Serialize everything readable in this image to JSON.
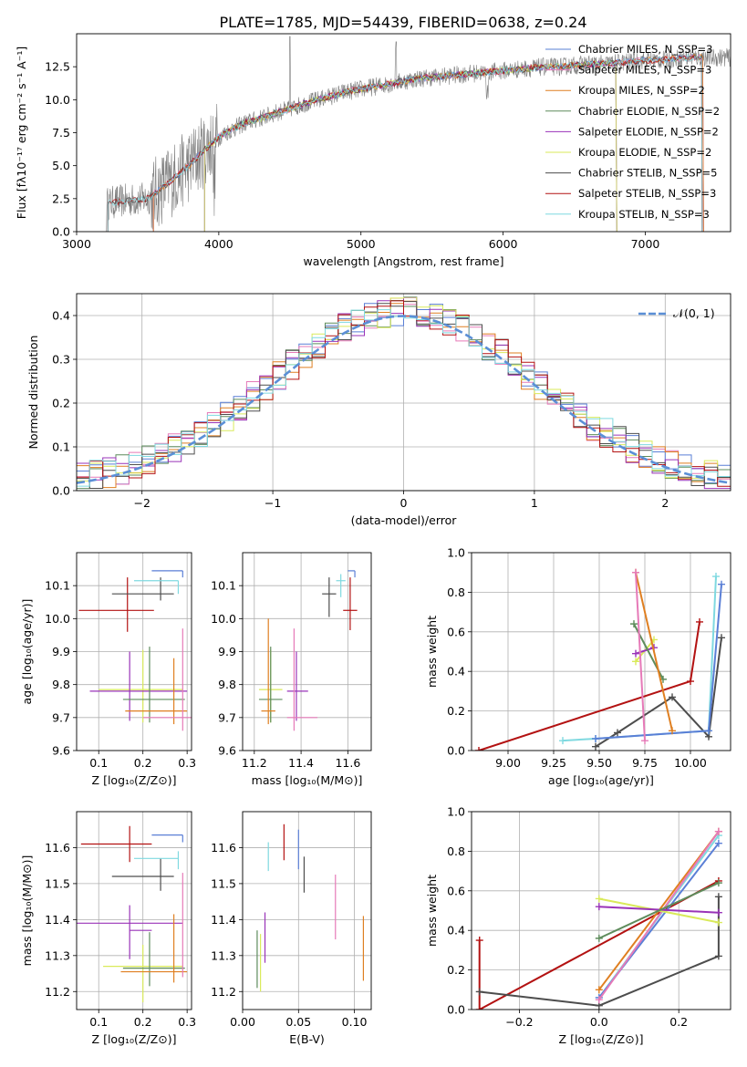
{
  "figure": {
    "title": "PLATE=1785, MJD=54439, FIBERID=0638, z=0.24",
    "colors": {
      "Chabrier MILES": "#5a7fd6",
      "Salpeter MILES": "#e67ab8",
      "Kroupa MILES": "#df7f21",
      "Chabrier ELODIE": "#5e8c5c",
      "Salpeter ELODIE": "#9933b8",
      "Kroupa ELODIE": "#d9ea5a",
      "Chabrier STELIB": "#4d4d4d",
      "Salpeter STELIB": "#b31212",
      "Kroupa STELIB": "#7fd9e0",
      "data": "#7f7f7f",
      "normal": "#5b8fd6"
    }
  },
  "chart_data": [
    {
      "id": "spectrum",
      "type": "line",
      "xlabel": "wavelength [Angstrom, rest frame]",
      "ylabel": "Flux [fλ10⁻¹⁷ erg cm⁻² s⁻¹ A⁻¹]",
      "xlim": [
        3000,
        7600
      ],
      "ylim": [
        0,
        15
      ],
      "xticks": [
        "3000",
        "4000",
        "5000",
        "6000",
        "7000"
      ],
      "yticks": [
        "0.0",
        "2.5",
        "5.0",
        "7.5",
        "10.0",
        "12.5"
      ],
      "legend_position": "right",
      "legend": [
        "Chabrier MILES, N_SSP=3",
        "Salpeter MILES, N_SSP=3",
        "Kroupa MILES, N_SSP=2",
        "Chabrier ELODIE, N_SSP=2",
        "Salpeter ELODIE, N_SSP=2",
        "Kroupa ELODIE, N_SSP=2",
        "Chabrier STELIB, N_SSP=5",
        "Salpeter STELIB, N_SSP=3",
        "Kroupa STELIB, N_SSP=3"
      ],
      "continuum": {
        "x": [
          3200,
          3300,
          3400,
          3500,
          3600,
          3700,
          3800,
          3900,
          4000,
          4100,
          4200,
          4300,
          4400,
          4500,
          4600,
          4700,
          4800,
          4900,
          5000,
          5100,
          5200,
          5300,
          5400,
          5500,
          5600,
          5700,
          5800,
          5900,
          6000,
          6100,
          6200,
          6300,
          6400,
          6500,
          6600,
          6700,
          6800,
          6900,
          7000,
          7100,
          7200,
          7300
        ],
        "y": [
          2.1,
          2.3,
          2.4,
          2.5,
          3.3,
          4.2,
          5.1,
          6.2,
          7.2,
          7.8,
          8.3,
          8.6,
          9.0,
          9.3,
          9.7,
          10.0,
          10.3,
          10.6,
          10.8,
          11.0,
          11.2,
          11.4,
          11.6,
          11.7,
          11.8,
          11.9,
          12.0,
          12.1,
          12.2,
          12.3,
          12.4,
          12.5,
          12.5,
          12.6,
          12.7,
          12.7,
          12.8,
          12.9,
          13.0,
          13.0,
          13.1,
          13.2
        ]
      }
    },
    {
      "id": "residuals",
      "type": "line",
      "xlabel": "(data-model)/error",
      "ylabel": "Normed distribution",
      "xlim": [
        -2.5,
        2.5
      ],
      "ylim": [
        0,
        0.45
      ],
      "xticks": [
        "−2",
        "−1",
        "0",
        "1",
        "2"
      ],
      "yticks": [
        "0.0",
        "0.1",
        "0.2",
        "0.3",
        "0.4"
      ],
      "legend": [
        "𝒩(0, 1)"
      ],
      "legend_position": "top-right",
      "curve": "normal(0,1)"
    },
    {
      "id": "age_vs_Z",
      "type": "scatter",
      "xlabel": "Z [log₁₀(Z/Z⊙)]",
      "ylabel": "age  [log₁₀(age/yr)]",
      "xlim": [
        0.05,
        0.31
      ],
      "ylim": [
        9.6,
        10.2
      ],
      "xticks": [
        "0.1",
        "0.2",
        "0.3"
      ],
      "yticks": [
        "9.6",
        "9.7",
        "9.8",
        "9.9",
        "10.0",
        "10.1"
      ],
      "points": [
        {
          "model": "Salpeter STELIB",
          "x": 0.165,
          "y": 10.025,
          "xerr": [
            0.11,
            0.06
          ],
          "yerr": [
            0.065,
            0.1
          ]
        },
        {
          "model": "Chabrier STELIB",
          "x": 0.24,
          "y": 10.075,
          "xerr": [
            0.11,
            0.03
          ],
          "yerr": [
            0.02,
            0.05
          ]
        },
        {
          "model": "Kroupa STELIB",
          "x": 0.28,
          "y": 10.115,
          "xerr": [
            0.1,
            0.0
          ],
          "yerr": [
            0.04,
            0.0
          ]
        },
        {
          "model": "Chabrier MILES",
          "x": 0.29,
          "y": 10.145,
          "xerr": [
            0.07,
            0.0
          ],
          "yerr": [
            0.02,
            0.0
          ]
        },
        {
          "model": "Kroupa ELODIE",
          "x": 0.2,
          "y": 9.785,
          "xerr": [
            0.1,
            0.09
          ],
          "yerr": [
            0.1,
            0.12
          ]
        },
        {
          "model": "Salpeter ELODIE",
          "x": 0.17,
          "y": 9.78,
          "xerr": [
            0.09,
            0.13
          ],
          "yerr": [
            0.09,
            0.12
          ]
        },
        {
          "model": "Chabrier ELODIE",
          "x": 0.215,
          "y": 9.755,
          "xerr": [
            0.06,
            0.08
          ],
          "yerr": [
            0.07,
            0.16
          ]
        },
        {
          "model": "Kroupa MILES",
          "x": 0.27,
          "y": 9.72,
          "xerr": [
            0.11,
            0.03
          ],
          "yerr": [
            0.04,
            0.16
          ]
        },
        {
          "model": "Salpeter MILES",
          "x": 0.29,
          "y": 9.7,
          "xerr": [
            0.09,
            0.02
          ],
          "yerr": [
            0.04,
            0.27
          ]
        }
      ]
    },
    {
      "id": "age_vs_mass",
      "type": "scatter",
      "xlabel": "mass [log₁₀(M/M⊙)]",
      "xlim": [
        11.15,
        11.7
      ],
      "ylim": [
        9.6,
        10.2
      ],
      "xticks": [
        "11.2",
        "11.4",
        "11.6"
      ],
      "yticks": [
        "9.6",
        "9.7",
        "9.8",
        "9.9",
        "10.0",
        "10.1"
      ],
      "points": [
        {
          "model": "Salpeter STELIB",
          "x": 11.61,
          "y": 10.025,
          "xerr": [
            0.03,
            0.03
          ],
          "yerr": [
            0.06,
            0.1
          ]
        },
        {
          "model": "Chabrier STELIB",
          "x": 11.52,
          "y": 10.075,
          "xerr": [
            0.03,
            0.03
          ],
          "yerr": [
            0.07,
            0.05
          ]
        },
        {
          "model": "Kroupa STELIB",
          "x": 11.57,
          "y": 10.115,
          "xerr": [
            0.02,
            0.02
          ],
          "yerr": [
            0.05,
            0.02
          ]
        },
        {
          "model": "Chabrier MILES",
          "x": 11.63,
          "y": 10.145,
          "xerr": [
            0.03,
            0.0
          ],
          "yerr": [
            0.02,
            0.0
          ]
        },
        {
          "model": "Kroupa ELODIE",
          "x": 11.27,
          "y": 9.785,
          "xerr": [
            0.05,
            0.05
          ],
          "yerr": [
            0.1,
            0.12
          ]
        },
        {
          "model": "Salpeter ELODIE",
          "x": 11.38,
          "y": 9.78,
          "xerr": [
            0.04,
            0.05
          ],
          "yerr": [
            0.09,
            0.12
          ]
        },
        {
          "model": "Chabrier ELODIE",
          "x": 11.27,
          "y": 9.755,
          "xerr": [
            0.05,
            0.05
          ],
          "yerr": [
            0.07,
            0.16
          ]
        },
        {
          "model": "Kroupa MILES",
          "x": 11.26,
          "y": 9.72,
          "xerr": [
            0.03,
            0.03
          ],
          "yerr": [
            0.04,
            0.28
          ]
        },
        {
          "model": "Salpeter MILES",
          "x": 11.37,
          "y": 9.7,
          "xerr": [
            0.03,
            0.1
          ],
          "yerr": [
            0.04,
            0.27
          ]
        }
      ]
    },
    {
      "id": "weight_vs_age",
      "type": "line",
      "xlabel": "age  [log₁₀(age/yr)]",
      "ylabel": "mass weight",
      "xlim": [
        8.8,
        10.22
      ],
      "ylim": [
        0,
        1.0
      ],
      "xticks": [
        "9.00",
        "9.25",
        "9.50",
        "9.75",
        "10.00"
      ],
      "yticks": [
        "0.0",
        "0.2",
        "0.4",
        "0.6",
        "0.8",
        "1.0"
      ],
      "series": [
        {
          "model": "Salpeter STELIB",
          "x": [
            8.84,
            10.0,
            10.05
          ],
          "y": [
            0.0,
            0.35,
            0.65
          ]
        },
        {
          "model": "Chabrier STELIB",
          "x": [
            9.48,
            9.6,
            9.9,
            10.1,
            10.17
          ],
          "y": [
            0.02,
            0.09,
            0.27,
            0.07,
            0.57
          ]
        },
        {
          "model": "Kroupa STELIB",
          "x": [
            9.3,
            9.48,
            10.1,
            10.14
          ],
          "y": [
            0.05,
            0.06,
            0.1,
            0.88
          ]
        },
        {
          "model": "Chabrier MILES",
          "x": [
            9.48,
            10.1,
            10.17
          ],
          "y": [
            0.06,
            0.1,
            0.84
          ]
        },
        {
          "model": "Kroupa ELODIE",
          "x": [
            9.7,
            9.8
          ],
          "y": [
            0.45,
            0.56
          ]
        },
        {
          "model": "Salpeter ELODIE",
          "x": [
            9.7,
            9.8
          ],
          "y": [
            0.49,
            0.52
          ]
        },
        {
          "model": "Chabrier ELODIE",
          "x": [
            9.69,
            9.85
          ],
          "y": [
            0.64,
            0.36
          ]
        },
        {
          "model": "Kroupa MILES",
          "x": [
            9.7,
            9.9
          ],
          "y": [
            0.9,
            0.1
          ]
        },
        {
          "model": "Salpeter MILES",
          "x": [
            9.7,
            9.75
          ],
          "y": [
            0.9,
            0.05
          ]
        }
      ]
    },
    {
      "id": "mass_vs_Z",
      "type": "scatter",
      "xlabel": "Z [log₁₀(Z/Z⊙)]",
      "ylabel": "mass [log₁₀(M/M⊙)]",
      "xlim": [
        0.05,
        0.31
      ],
      "ylim": [
        11.15,
        11.7
      ],
      "xticks": [
        "0.1",
        "0.2",
        "0.3"
      ],
      "yticks": [
        "11.2",
        "11.3",
        "11.4",
        "11.5",
        "11.6"
      ],
      "points": [
        {
          "model": "Salpeter STELIB",
          "x": 0.17,
          "y": 11.61,
          "xerr": [
            0.11,
            0.05
          ],
          "yerr": [
            0.05,
            0.05
          ]
        },
        {
          "model": "Chabrier STELIB",
          "x": 0.24,
          "y": 11.52,
          "xerr": [
            0.11,
            0.03
          ],
          "yerr": [
            0.04,
            0.05
          ]
        },
        {
          "model": "Kroupa STELIB",
          "x": 0.28,
          "y": 11.57,
          "xerr": [
            0.1,
            0.0
          ],
          "yerr": [
            0.03,
            0.02
          ]
        },
        {
          "model": "Chabrier MILES",
          "x": 0.29,
          "y": 11.635,
          "xerr": [
            0.07,
            0.0
          ],
          "yerr": [
            0.02,
            0.0
          ]
        },
        {
          "model": "Salpeter ELODIE",
          "x": 0.17,
          "y": 11.39,
          "xerr": [
            0.13,
            0.12
          ],
          "yerr": [
            0.1,
            0.05
          ]
        },
        {
          "model": "Salpeter ELODIE",
          "x": 0.22,
          "y": 11.37,
          "xerr": [
            0.05,
            0.0
          ],
          "yerr": [
            0.0,
            0.0
          ]
        },
        {
          "model": "Kroupa ELODIE",
          "x": 0.2,
          "y": 11.27,
          "xerr": [
            0.09,
            0.09
          ],
          "yerr": [
            0.1,
            0.06
          ]
        },
        {
          "model": "Chabrier ELODIE",
          "x": 0.215,
          "y": 11.265,
          "xerr": [
            0.06,
            0.08
          ],
          "yerr": [
            0.05,
            0.1
          ]
        },
        {
          "model": "Kroupa MILES",
          "x": 0.27,
          "y": 11.255,
          "xerr": [
            0.12,
            0.03
          ],
          "yerr": [
            0.03,
            0.16
          ]
        },
        {
          "model": "Salpeter MILES",
          "x": 0.29,
          "y": 11.34,
          "xerr": [
            0.0,
            0.0
          ],
          "yerr": [
            0.1,
            0.19
          ]
        }
      ]
    },
    {
      "id": "mass_vs_ebv",
      "type": "scatter",
      "xlabel": "E(B-V)",
      "xlim": [
        0.0,
        0.115
      ],
      "ylim": [
        11.15,
        11.7
      ],
      "xticks": [
        "0.00",
        "0.05",
        "0.10"
      ],
      "yticks": [
        "11.2",
        "11.3",
        "11.4",
        "11.5",
        "11.6"
      ],
      "points": [
        {
          "model": "Salpeter STELIB",
          "x": 0.037,
          "y": 11.615,
          "yerr": [
            0.05,
            0.05
          ]
        },
        {
          "model": "Chabrier STELIB",
          "x": 0.055,
          "y": 11.525,
          "yerr": [
            0.05,
            0.05
          ]
        },
        {
          "model": "Kroupa STELIB",
          "x": 0.023,
          "y": 11.575,
          "yerr": [
            0.04,
            0.04
          ]
        },
        {
          "model": "Chabrier MILES",
          "x": 0.05,
          "y": 11.6,
          "yerr": [
            0.06,
            0.05
          ]
        },
        {
          "model": "Salpeter MILES",
          "x": 0.083,
          "y": 11.435,
          "yerr": [
            0.09,
            0.09
          ]
        },
        {
          "model": "Kroupa MILES",
          "x": 0.108,
          "y": 11.32,
          "yerr": [
            0.09,
            0.09
          ]
        },
        {
          "model": "Salpeter ELODIE",
          "x": 0.02,
          "y": 11.35,
          "yerr": [
            0.07,
            0.07
          ]
        },
        {
          "model": "Chabrier ELODIE",
          "x": 0.013,
          "y": 11.29,
          "yerr": [
            0.08,
            0.08
          ]
        },
        {
          "model": "Kroupa ELODIE",
          "x": 0.016,
          "y": 11.28,
          "yerr": [
            0.08,
            0.08
          ]
        }
      ]
    },
    {
      "id": "weight_vs_Z",
      "type": "line",
      "xlabel": "Z [log₁₀(Z/Z⊙)]",
      "ylabel": "mass weight",
      "xlim": [
        -0.32,
        0.33
      ],
      "ylim": [
        0,
        1.0
      ],
      "xticks": [
        "−0.2",
        "0.0",
        "0.2"
      ],
      "yticks": [
        "0.0",
        "0.2",
        "0.4",
        "0.6",
        "0.8",
        "1.0"
      ],
      "series": [
        {
          "model": "Salpeter STELIB",
          "x": [
            -0.3,
            -0.3,
            0.3
          ],
          "y": [
            0.35,
            0.0,
            0.65
          ]
        },
        {
          "model": "Chabrier STELIB",
          "x": [
            -0.3,
            0.0,
            0.3,
            0.3
          ],
          "y": [
            0.09,
            0.02,
            0.27,
            0.57
          ]
        },
        {
          "model": "Kroupa STELIB",
          "x": [
            0.0,
            0.3
          ],
          "y": [
            0.06,
            0.88
          ]
        },
        {
          "model": "Chabrier MILES",
          "x": [
            0.0,
            0.3
          ],
          "y": [
            0.06,
            0.84
          ]
        },
        {
          "model": "Kroupa MILES",
          "x": [
            0.0,
            0.3
          ],
          "y": [
            0.1,
            0.9
          ]
        },
        {
          "model": "Salpeter MILES",
          "x": [
            0.0,
            0.3
          ],
          "y": [
            0.05,
            0.9
          ]
        },
        {
          "model": "Kroupa ELODIE",
          "x": [
            0.0,
            0.3
          ],
          "y": [
            0.56,
            0.44
          ]
        },
        {
          "model": "Salpeter ELODIE",
          "x": [
            0.0,
            0.3
          ],
          "y": [
            0.52,
            0.49
          ]
        },
        {
          "model": "Chabrier ELODIE",
          "x": [
            0.0,
            0.3
          ],
          "y": [
            0.36,
            0.64
          ]
        }
      ]
    }
  ]
}
